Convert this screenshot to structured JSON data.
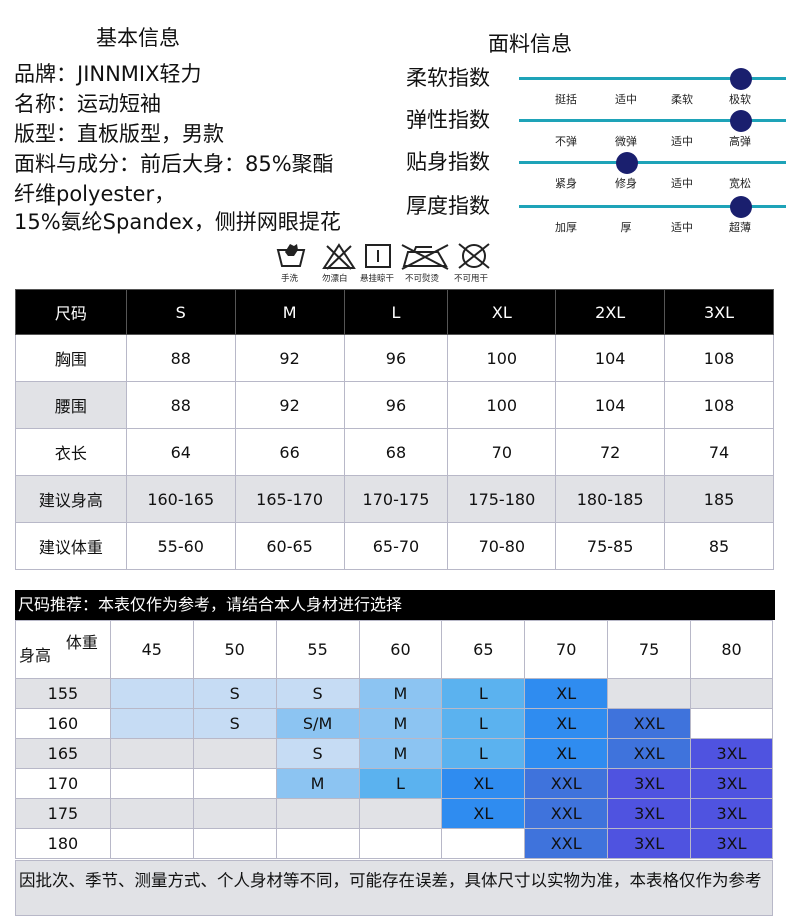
{
  "basic": {
    "title": "基本信息",
    "lines": [
      "品牌：JINNMIX轻力",
      "名称：运动短袖",
      "版型：直板版型，男款",
      "面料与成分：前后大身：85%聚酯",
      "纤维polyester，",
      "15%氨纶Spandex，侧拼网眼提花"
    ]
  },
  "fabric": {
    "title": "面料信息",
    "indicators": [
      {
        "label": "柔软指数",
        "options": [
          "挺括",
          "适中",
          "柔软",
          "极软"
        ],
        "selected": "极软"
      },
      {
        "label": "弹性指数",
        "options": [
          "不弹",
          "微弹",
          "适中",
          "高弹"
        ],
        "selected": "高弹"
      },
      {
        "label": "贴身指数",
        "options": [
          "紧身",
          "修身",
          "适中",
          "宽松"
        ],
        "selected": "修身"
      },
      {
        "label": "厚度指数",
        "options": [
          "加厚",
          "厚",
          "适中",
          "超薄"
        ],
        "selected": "超薄"
      }
    ],
    "dot_color": "#1a1f6e",
    "line_color": "#1ea3b8"
  },
  "care": [
    {
      "icon": "hand-wash-icon",
      "label": "手洗"
    },
    {
      "icon": "no-bleach-icon",
      "label": "勿漂白"
    },
    {
      "icon": "hang-dry-icon",
      "label": "悬挂晾干"
    },
    {
      "icon": "no-iron-icon",
      "label": "不可熨烫"
    },
    {
      "icon": "no-tumble-dry-icon",
      "label": "不可甩干"
    }
  ],
  "size_table": {
    "headers": [
      "尺码",
      "S",
      "M",
      "L",
      "XL",
      "2XL",
      "3XL"
    ],
    "rows": [
      {
        "label": "胸围",
        "values": [
          "88",
          "92",
          "96",
          "100",
          "104",
          "108"
        ]
      },
      {
        "label": "腰围",
        "values": [
          "88",
          "92",
          "96",
          "100",
          "104",
          "108"
        ]
      },
      {
        "label": "衣长",
        "values": [
          "64",
          "66",
          "68",
          "70",
          "72",
          "74"
        ]
      },
      {
        "label": "建议身高",
        "values": [
          "160-165",
          "165-170",
          "170-175",
          "175-180",
          "180-185",
          "185"
        ]
      },
      {
        "label": "建议体重",
        "values": [
          "55-60",
          "60-65",
          "65-70",
          "70-80",
          "75-85",
          "85"
        ]
      }
    ]
  },
  "recommend": {
    "title": "尺码推荐：本表仅作为参考，请结合本人身材进行选择",
    "weight_label": "体重",
    "height_label": "身高",
    "weights": [
      "45",
      "50",
      "55",
      "60",
      "65",
      "70",
      "75",
      "80"
    ],
    "rows": [
      {
        "height": "155",
        "cells": [
          "",
          "S",
          "S",
          "M",
          "L",
          "XL",
          "",
          ""
        ]
      },
      {
        "height": "160",
        "cells": [
          "",
          "S",
          "S/M",
          "M",
          "L",
          "XL",
          "XXL",
          ""
        ]
      },
      {
        "height": "165",
        "cells": [
          "",
          "",
          "S",
          "M",
          "L",
          "XL",
          "XXL",
          "3XL"
        ]
      },
      {
        "height": "170",
        "cells": [
          "",
          "",
          "M",
          "L",
          "XL",
          "XXL",
          "3XL",
          "3XL"
        ]
      },
      {
        "height": "175",
        "cells": [
          "",
          "",
          "",
          "",
          "XL",
          "XXL",
          "3XL",
          "3XL"
        ]
      },
      {
        "height": "180",
        "cells": [
          "",
          "",
          "",
          "",
          "",
          "XXL",
          "3XL",
          "3XL"
        ]
      }
    ],
    "note": "因批次、季节、测量方式、个人身材等不同，可能存在误差，具体尺寸以实物为准，本表格仅作为参考",
    "colors": {
      "S": "#c6dcf4",
      "S/M": "#8cc4f2",
      "M": "#8cc4f2",
      "L": "#5bb2ef",
      "XL": "#2f8cf0",
      "XXL": "#3f73dc",
      "3XL": "#4f53e0",
      "empty_light": "#c6dcf4",
      "empty_gray": "#e1e2e6",
      "empty_white": "#ffffff"
    }
  }
}
